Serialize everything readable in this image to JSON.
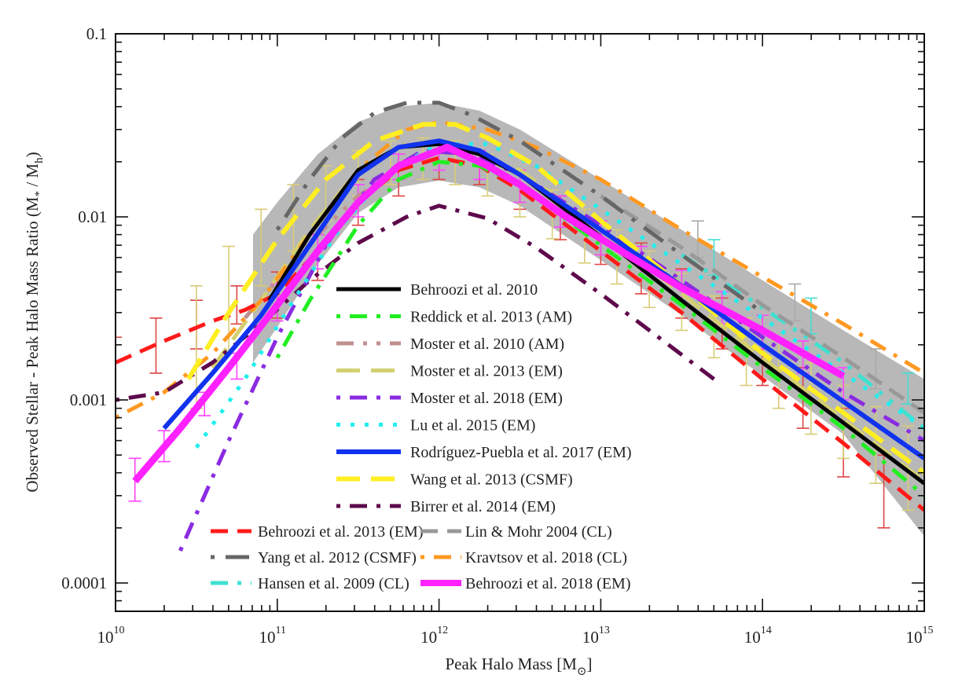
{
  "chart_data": {
    "type": "line",
    "title": "",
    "xlabel": "Peak Halo Mass [M⊙]",
    "xlabel_main": "Peak Halo Mass [M",
    "xlabel_sub": "⊙",
    "xlabel_close": "]",
    "ylabel_main": "Observed Stellar - Peak Halo Mass Ratio (M",
    "ylabel_sub1": "*",
    "ylabel_mid": " / M",
    "ylabel_sub2": "h",
    "ylabel_close": ")",
    "xscale": "log",
    "yscale": "log",
    "xlim": [
      10000000000.0,
      1000000000000000.0
    ],
    "ylim": [
      7e-05,
      0.1
    ],
    "x_ticks": [
      {
        "base": "10",
        "exp": "10",
        "value": 10000000000.0
      },
      {
        "base": "10",
        "exp": "11",
        "value": 100000000000.0
      },
      {
        "base": "10",
        "exp": "12",
        "value": 1000000000000.0
      },
      {
        "base": "10",
        "exp": "13",
        "value": 10000000000000.0
      },
      {
        "base": "10",
        "exp": "14",
        "value": 100000000000000.0
      },
      {
        "base": "10",
        "exp": "15",
        "value": 1000000000000000.0
      }
    ],
    "y_ticks": [
      {
        "label": "0.1",
        "value": 0.1
      },
      {
        "label": "0.01",
        "value": 0.01
      },
      {
        "label": "0.001",
        "value": 0.001
      },
      {
        "label": "0.0001",
        "value": 0.0001
      }
    ],
    "grid": false,
    "band": {
      "name": "Behroozi et al. 2010 uncertainty",
      "color": "#b8b8b8",
      "x_log": [
        10.85,
        11.0,
        11.25,
        11.5,
        11.75,
        12.0,
        12.25,
        12.5,
        13.0,
        13.5,
        14.0,
        14.5,
        15.0
      ],
      "upper": [
        0.008,
        0.012,
        0.022,
        0.033,
        0.04,
        0.042,
        0.038,
        0.03,
        0.016,
        0.0085,
        0.0045,
        0.0024,
        0.0013
      ],
      "lower": [
        0.0016,
        0.0025,
        0.0055,
        0.0105,
        0.0145,
        0.0158,
        0.0145,
        0.0115,
        0.0058,
        0.0029,
        0.00135,
        0.00065,
        0.00018
      ]
    },
    "series": [
      {
        "name": "Behroozi et al. 2010",
        "color": "#000000",
        "dash": "solid",
        "width": 5,
        "x_log": [
          10.95,
          11.2,
          11.5,
          11.75,
          12.0,
          12.25,
          12.5,
          13.0,
          13.5,
          14.0,
          14.5,
          15.0
        ],
        "y": [
          0.0035,
          0.008,
          0.018,
          0.024,
          0.025,
          0.022,
          0.017,
          0.0078,
          0.0035,
          0.0016,
          0.00075,
          0.00035
        ]
      },
      {
        "name": "Reddick et al. 2013 (AM)",
        "color": "#22ee22",
        "dash": "dot-dash-dot",
        "width": 5,
        "x_log": [
          11.0,
          11.2,
          11.5,
          11.75,
          12.0,
          12.25,
          12.5,
          13.0,
          13.5,
          14.0,
          14.5,
          15.0
        ],
        "y": [
          0.0017,
          0.0035,
          0.009,
          0.016,
          0.02,
          0.019,
          0.015,
          0.007,
          0.0033,
          0.0015,
          0.0007,
          0.0003
        ]
      },
      {
        "name": "Moster et al. 2010 (AM)",
        "color": "#c09090",
        "dash": "dash-dot-dot",
        "width": 5,
        "x_log": [
          10.8,
          11.0,
          11.25,
          11.5,
          11.75
        ],
        "y": [
          0.0028,
          0.0045,
          0.008,
          0.013,
          0.018
        ]
      },
      {
        "name": "Moster et al. 2013 (EM)",
        "color": "#d4d070",
        "dash": "longdash",
        "width": 5,
        "x_log": [
          10.6,
          10.9,
          11.2,
          11.5,
          11.8,
          12.0,
          12.5,
          13.0,
          13.5,
          14.0,
          14.5,
          15.0
        ],
        "y": [
          0.0015,
          0.0035,
          0.0085,
          0.018,
          0.025,
          0.026,
          0.018,
          0.0085,
          0.0038,
          0.0017,
          0.00078,
          0.00036
        ]
      },
      {
        "name": "Moster et al. 2018 (EM)",
        "color": "#8a2be2",
        "dash": "dot-dash-dot",
        "width": 5,
        "x_log": [
          10.4,
          10.7,
          11.0,
          11.3,
          11.6,
          11.9,
          12.2,
          12.5,
          13.0,
          13.5,
          14.0,
          14.5,
          15.0
        ],
        "y": [
          0.00015,
          0.0006,
          0.0022,
          0.007,
          0.016,
          0.023,
          0.022,
          0.017,
          0.009,
          0.0045,
          0.0022,
          0.0011,
          0.0006
        ]
      },
      {
        "name": "Lu et al. 2015 (EM)",
        "color": "#22eeee",
        "dash": "dots",
        "width": 5,
        "x_log": [
          10.5,
          10.8,
          11.1,
          11.4,
          11.7,
          12.0,
          12.3,
          12.6,
          13.0,
          13.5,
          14.0,
          14.5,
          15.0
        ],
        "y": [
          0.00055,
          0.0013,
          0.0035,
          0.009,
          0.018,
          0.025,
          0.025,
          0.019,
          0.011,
          0.0055,
          0.0028,
          0.0014,
          0.0007
        ]
      },
      {
        "name": "Rodríguez-Puebla et al. 2017 (EM)",
        "color": "#1133ee",
        "dash": "solid",
        "width": 6,
        "x_log": [
          10.3,
          10.6,
          10.9,
          11.2,
          11.5,
          11.75,
          12.0,
          12.25,
          12.5,
          13.0,
          13.5,
          14.0,
          14.5,
          15.0
        ],
        "y": [
          0.0007,
          0.0014,
          0.0029,
          0.007,
          0.017,
          0.024,
          0.026,
          0.023,
          0.017,
          0.0085,
          0.0042,
          0.002,
          0.00098,
          0.00048
        ]
      },
      {
        "name": "Wang et al. 2013 (CSMF)",
        "color": "#ffee22",
        "dash": "longdash",
        "width": 6,
        "x_log": [
          10.45,
          10.7,
          11.0,
          11.3,
          11.6,
          11.9,
          12.1,
          12.3,
          12.6,
          13.0,
          13.5,
          14.0,
          14.5,
          15.0
        ],
        "y": [
          0.0013,
          0.003,
          0.0075,
          0.016,
          0.026,
          0.032,
          0.032,
          0.027,
          0.019,
          0.0095,
          0.0042,
          0.0018,
          0.00085,
          0.0004
        ]
      },
      {
        "name": "Birrer et al. 2014 (EM)",
        "color": "#5e0a4c",
        "dash": "dot-dash-dot",
        "width": 5,
        "x_log": [
          10.0,
          10.3,
          10.6,
          10.9,
          11.2,
          11.5,
          11.8,
          12.0,
          12.3,
          12.6,
          13.0,
          13.3,
          13.7
        ],
        "y": [
          0.001,
          0.0011,
          0.0016,
          0.0026,
          0.0045,
          0.0072,
          0.01,
          0.0115,
          0.0098,
          0.0068,
          0.0038,
          0.0024,
          0.0013
        ]
      },
      {
        "name": "Behroozi et al. 2013 (EM)",
        "color": "#ff1a1a",
        "dash": "dash",
        "width": 5,
        "x_log": [
          10.0,
          10.3,
          10.6,
          10.8,
          11.0,
          11.25,
          11.5,
          11.75,
          12.0,
          12.25,
          12.5,
          13.0,
          13.5,
          14.0,
          14.5,
          15.0
        ],
        "y": [
          0.0016,
          0.0021,
          0.0027,
          0.0031,
          0.0038,
          0.0065,
          0.012,
          0.018,
          0.021,
          0.019,
          0.014,
          0.0065,
          0.003,
          0.0013,
          0.00058,
          0.00025
        ]
      },
      {
        "name": "Yang et al. 2012 (CSMF)",
        "color": "#666666",
        "dash": "dot-longdash",
        "width": 5,
        "x_log": [
          11.0,
          11.2,
          11.4,
          11.6,
          11.8,
          12.0,
          12.2,
          12.5,
          13.0,
          13.5,
          14.0
        ],
        "y": [
          0.0085,
          0.016,
          0.027,
          0.037,
          0.042,
          0.042,
          0.036,
          0.026,
          0.013,
          0.0062,
          0.003
        ]
      },
      {
        "name": "Hansen et al. 2009 (CL)",
        "color": "#40e0d0",
        "dash": "dash-dot-dot",
        "width": 5,
        "x_log": [
          13.5,
          14.0,
          14.5,
          15.0
        ],
        "y": [
          0.0062,
          0.0032,
          0.0016,
          0.0007
        ]
      },
      {
        "name": "Lin & Mohr 2004 (CL)",
        "color": "#999999",
        "dash": "dash",
        "width": 5,
        "x_log": [
          13.0,
          13.5,
          14.0,
          14.5,
          15.0
        ],
        "y": [
          0.013,
          0.0068,
          0.0033,
          0.0017,
          0.00085
        ]
      },
      {
        "name": "Kravtsov et al. 2018 (CL)",
        "color": "#ff9922",
        "dash": "dot-dash-dot",
        "width": 5,
        "x_log": [
          10.0,
          10.3,
          10.6,
          10.9,
          11.2,
          11.5,
          11.8,
          12.0,
          12.3,
          12.6,
          13.0,
          13.5,
          14.0,
          14.5,
          15.0
        ],
        "y": [
          0.0008,
          0.0011,
          0.0018,
          0.0035,
          0.008,
          0.018,
          0.03,
          0.033,
          0.03,
          0.024,
          0.016,
          0.0085,
          0.0047,
          0.0026,
          0.0014
        ]
      },
      {
        "name": "Behroozi et al. 2018 (EM)",
        "color": "#ff22ff",
        "dash": "solid",
        "width": 9,
        "x_log": [
          10.12,
          10.4,
          10.7,
          11.0,
          11.25,
          11.5,
          11.75,
          12.05,
          12.3,
          12.5,
          12.75,
          13.0,
          13.5,
          14.0,
          14.5
        ],
        "y": [
          0.00036,
          0.0007,
          0.0015,
          0.0033,
          0.0065,
          0.012,
          0.019,
          0.024,
          0.019,
          0.015,
          0.0105,
          0.0076,
          0.0041,
          0.0024,
          0.00135
        ]
      }
    ],
    "error_bars": [
      {
        "color": "#e04545",
        "x_log": [
          10.0,
          10.25,
          10.5,
          10.75,
          11.0,
          11.25,
          11.5,
          11.75,
          12.0,
          12.25,
          12.5,
          12.75,
          13.0,
          13.25,
          13.5,
          13.75,
          14.0,
          14.25,
          14.5,
          14.75
        ],
        "lo": [
          0.001,
          0.0014,
          0.0019,
          0.0026,
          0.0028,
          0.0045,
          0.009,
          0.013,
          0.016,
          0.015,
          0.011,
          0.0075,
          0.0055,
          0.0038,
          0.0028,
          0.0019,
          0.0012,
          0.0007,
          0.00038,
          0.0002
        ],
        "hi": [
          0.0022,
          0.0028,
          0.0035,
          0.0042,
          0.005,
          0.008,
          0.016,
          0.022,
          0.025,
          0.023,
          0.018,
          0.013,
          0.0095,
          0.0072,
          0.0052,
          0.0036,
          0.0024,
          0.0015,
          0.0009,
          0.0005
        ]
      },
      {
        "color": "#d8cc78",
        "x_log": [
          10.5,
          10.7,
          10.9,
          11.1,
          11.3,
          11.5,
          11.7,
          11.9,
          12.1,
          12.3,
          12.5,
          12.7,
          12.9,
          13.1,
          13.3,
          13.5,
          13.7,
          13.9,
          14.1,
          14.3,
          14.5,
          14.7,
          14.9
        ],
        "lo": [
          0.0009,
          0.0018,
          0.0042,
          0.0065,
          0.0095,
          0.013,
          0.015,
          0.016,
          0.015,
          0.013,
          0.01,
          0.0076,
          0.0056,
          0.0043,
          0.0032,
          0.0024,
          0.0017,
          0.0012,
          0.0009,
          0.00065,
          0.00048,
          0.00035,
          0.00025
        ],
        "hi": [
          0.0042,
          0.0069,
          0.011,
          0.015,
          0.019,
          0.023,
          0.026,
          0.027,
          0.026,
          0.022,
          0.018,
          0.014,
          0.011,
          0.0085,
          0.0065,
          0.0049,
          0.0037,
          0.0028,
          0.0021,
          0.0016,
          0.0012,
          0.00092,
          0.00072
        ]
      },
      {
        "color": "#ff44ff",
        "x_log": [
          10.12,
          10.3,
          10.55,
          10.75,
          11.0,
          11.25,
          11.5,
          11.75,
          12.0,
          12.25,
          12.5,
          12.75,
          13.0,
          13.25,
          13.5,
          13.75,
          14.0,
          14.25,
          14.5
        ],
        "lo": [
          0.00028,
          0.00046,
          0.00082,
          0.0013,
          0.0027,
          0.0052,
          0.01,
          0.016,
          0.018,
          0.016,
          0.012,
          0.0088,
          0.0062,
          0.0046,
          0.0034,
          0.0026,
          0.0019,
          0.0014,
          0.001
        ],
        "hi": [
          0.00048,
          0.00068,
          0.0011,
          0.0018,
          0.0043,
          0.008,
          0.015,
          0.022,
          0.026,
          0.023,
          0.018,
          0.013,
          0.0095,
          0.0069,
          0.0051,
          0.0039,
          0.0029,
          0.0021,
          0.0015
        ]
      },
      {
        "color": "#aaaaaa",
        "x_log": [
          13.6,
          14.2,
          14.7
        ],
        "lo": [
          0.006,
          0.0027,
          0.00115
        ],
        "hi": [
          0.0095,
          0.0043,
          0.0019
        ]
      },
      {
        "color": "#40e0d0",
        "x_log": [
          13.7,
          14.3,
          14.9
        ],
        "lo": [
          0.0048,
          0.0023,
          0.00095
        ],
        "hi": [
          0.0075,
          0.0036,
          0.0014
        ]
      }
    ],
    "legend_placement": "center (inside plot, lower-middle)",
    "legend_column1": [
      0,
      1,
      2,
      3,
      4,
      5,
      6,
      7,
      8
    ],
    "legend_bottom_rows": [
      [
        9,
        12
      ],
      [
        10,
        13
      ],
      [
        11,
        14
      ]
    ]
  }
}
